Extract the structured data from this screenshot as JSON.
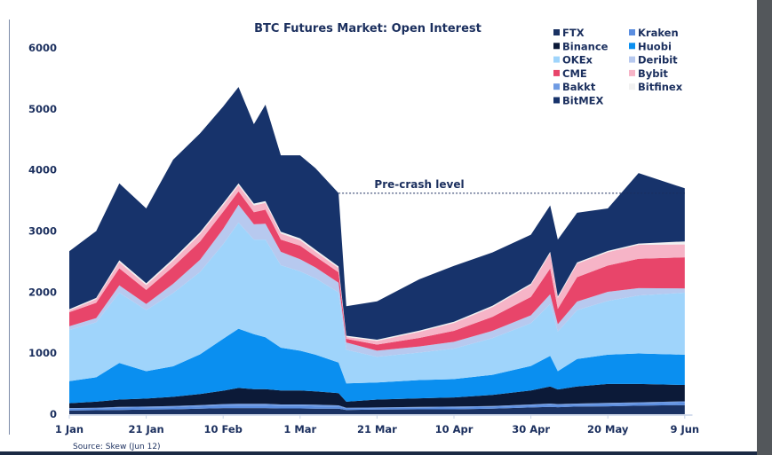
{
  "chart_data": {
    "type": "area",
    "stacked": true,
    "title": "BTC Futures Market: Open Interest",
    "xlabel": "",
    "ylabel": "",
    "ylim": [
      0,
      6000
    ],
    "yticks": [
      0,
      1000,
      2000,
      3000,
      4000,
      5000,
      6000
    ],
    "xticks": [
      "1 Jan",
      "21 Jan",
      "10 Feb",
      "1 Mar",
      "21 Mar",
      "10 Apr",
      "30 Apr",
      "20 May",
      "9 Jun"
    ],
    "grid": false,
    "legend_position": "top-right",
    "source": "Source: Skew  (Jun 12)",
    "annotation": {
      "label": "Pre-crash level",
      "value": 3620,
      "from": "Mar 11",
      "to": "Jun 9"
    },
    "x": [
      "Jan 1",
      "Jan 8",
      "Jan 14",
      "Jan 21",
      "Jan 28",
      "Feb 4",
      "Feb 10",
      "Feb 14",
      "Feb 18",
      "Feb 21",
      "Feb 25",
      "Mar 1",
      "Mar 5",
      "Mar 11",
      "Mar 13",
      "Mar 21",
      "Apr 1",
      "Apr 10",
      "Apr 20",
      "Apr 30",
      "May 5",
      "May 7",
      "May 12",
      "May 20",
      "May 28",
      "Jun 9"
    ],
    "series": [
      {
        "name": "FTX",
        "color": "#1a3263",
        "values": [
          60,
          65,
          70,
          75,
          80,
          90,
          100,
          100,
          100,
          100,
          95,
          95,
          90,
          90,
          70,
          75,
          80,
          80,
          90,
          110,
          120,
          115,
          125,
          130,
          140,
          150
        ]
      },
      {
        "name": "Kraken",
        "color": "#5b8ee0",
        "values": [
          30,
          30,
          35,
          35,
          35,
          40,
          40,
          40,
          40,
          40,
          40,
          40,
          40,
          35,
          25,
          25,
          25,
          30,
          30,
          30,
          35,
          30,
          30,
          30,
          35,
          40
        ]
      },
      {
        "name": "Bakkt",
        "color": "#6f9be3",
        "values": [
          10,
          10,
          15,
          15,
          20,
          20,
          25,
          30,
          30,
          30,
          25,
          25,
          25,
          20,
          10,
          10,
          15,
          15,
          15,
          20,
          20,
          20,
          20,
          25,
          20,
          20
        ]
      },
      {
        "name": "Binance",
        "color": "#0c1a38",
        "values": [
          80,
          100,
          120,
          130,
          150,
          180,
          220,
          260,
          240,
          240,
          230,
          230,
          220,
          200,
          100,
          130,
          140,
          150,
          180,
          230,
          280,
          240,
          280,
          310,
          300,
          270
        ]
      },
      {
        "name": "Huobi",
        "color": "#0a8ff0",
        "values": [
          360,
          400,
          600,
          450,
          500,
          650,
          850,
          970,
          900,
          850,
          700,
          650,
          600,
          500,
          300,
          280,
          300,
          300,
          330,
          400,
          500,
          300,
          450,
          480,
          500,
          495
        ]
      },
      {
        "name": "OKEx",
        "color": "#9fd4fb",
        "values": [
          840,
          900,
          1150,
          1000,
          1200,
          1350,
          1550,
          1740,
          1550,
          1600,
          1350,
          1300,
          1250,
          1150,
          550,
          420,
          450,
          500,
          600,
          700,
          850,
          650,
          800,
          880,
          950,
          1015
        ]
      },
      {
        "name": "Deribit",
        "color": "#b7c9ef",
        "values": [
          60,
          70,
          120,
          100,
          150,
          200,
          250,
          290,
          250,
          260,
          220,
          200,
          180,
          160,
          120,
          100,
          100,
          110,
          120,
          130,
          160,
          120,
          140,
          150,
          120,
          70
        ]
      },
      {
        "name": "CME",
        "color": "#e8456a",
        "values": [
          230,
          250,
          280,
          230,
          280,
          300,
          280,
          220,
          200,
          230,
          200,
          220,
          180,
          170,
          60,
          100,
          140,
          180,
          230,
          300,
          420,
          250,
          400,
          430,
          480,
          510
        ]
      },
      {
        "name": "Bybit",
        "color": "#f6b4c7",
        "values": [
          30,
          60,
          100,
          80,
          100,
          120,
          110,
          100,
          110,
          110,
          100,
          90,
          80,
          70,
          30,
          60,
          100,
          130,
          160,
          200,
          250,
          180,
          220,
          220,
          230,
          210
        ]
      },
      {
        "name": "Bitfinex",
        "color": "#f1f1f1",
        "values": [
          20,
          20,
          30,
          30,
          30,
          30,
          30,
          30,
          30,
          30,
          30,
          30,
          30,
          25,
          20,
          20,
          20,
          20,
          20,
          20,
          25,
          25,
          20,
          20,
          20,
          50
        ]
      },
      {
        "name": "BitMEX",
        "color": "#17336b",
        "values": [
          950,
          1095,
          1260,
          1225,
          1625,
          1620,
          1585,
          1580,
          1300,
          1580,
          1250,
          1360,
          1335,
          1200,
          485,
          630,
          840,
          915,
          875,
          800,
          760,
          930,
          815,
          695,
          1155,
          870
        ]
      }
    ],
    "legend_order": [
      "FTX",
      "Kraken",
      "Binance",
      "Huobi",
      "OKEx",
      "Deribit",
      "CME",
      "Bybit",
      "Bakkt",
      "Bitfinex",
      "BitMEX"
    ]
  }
}
